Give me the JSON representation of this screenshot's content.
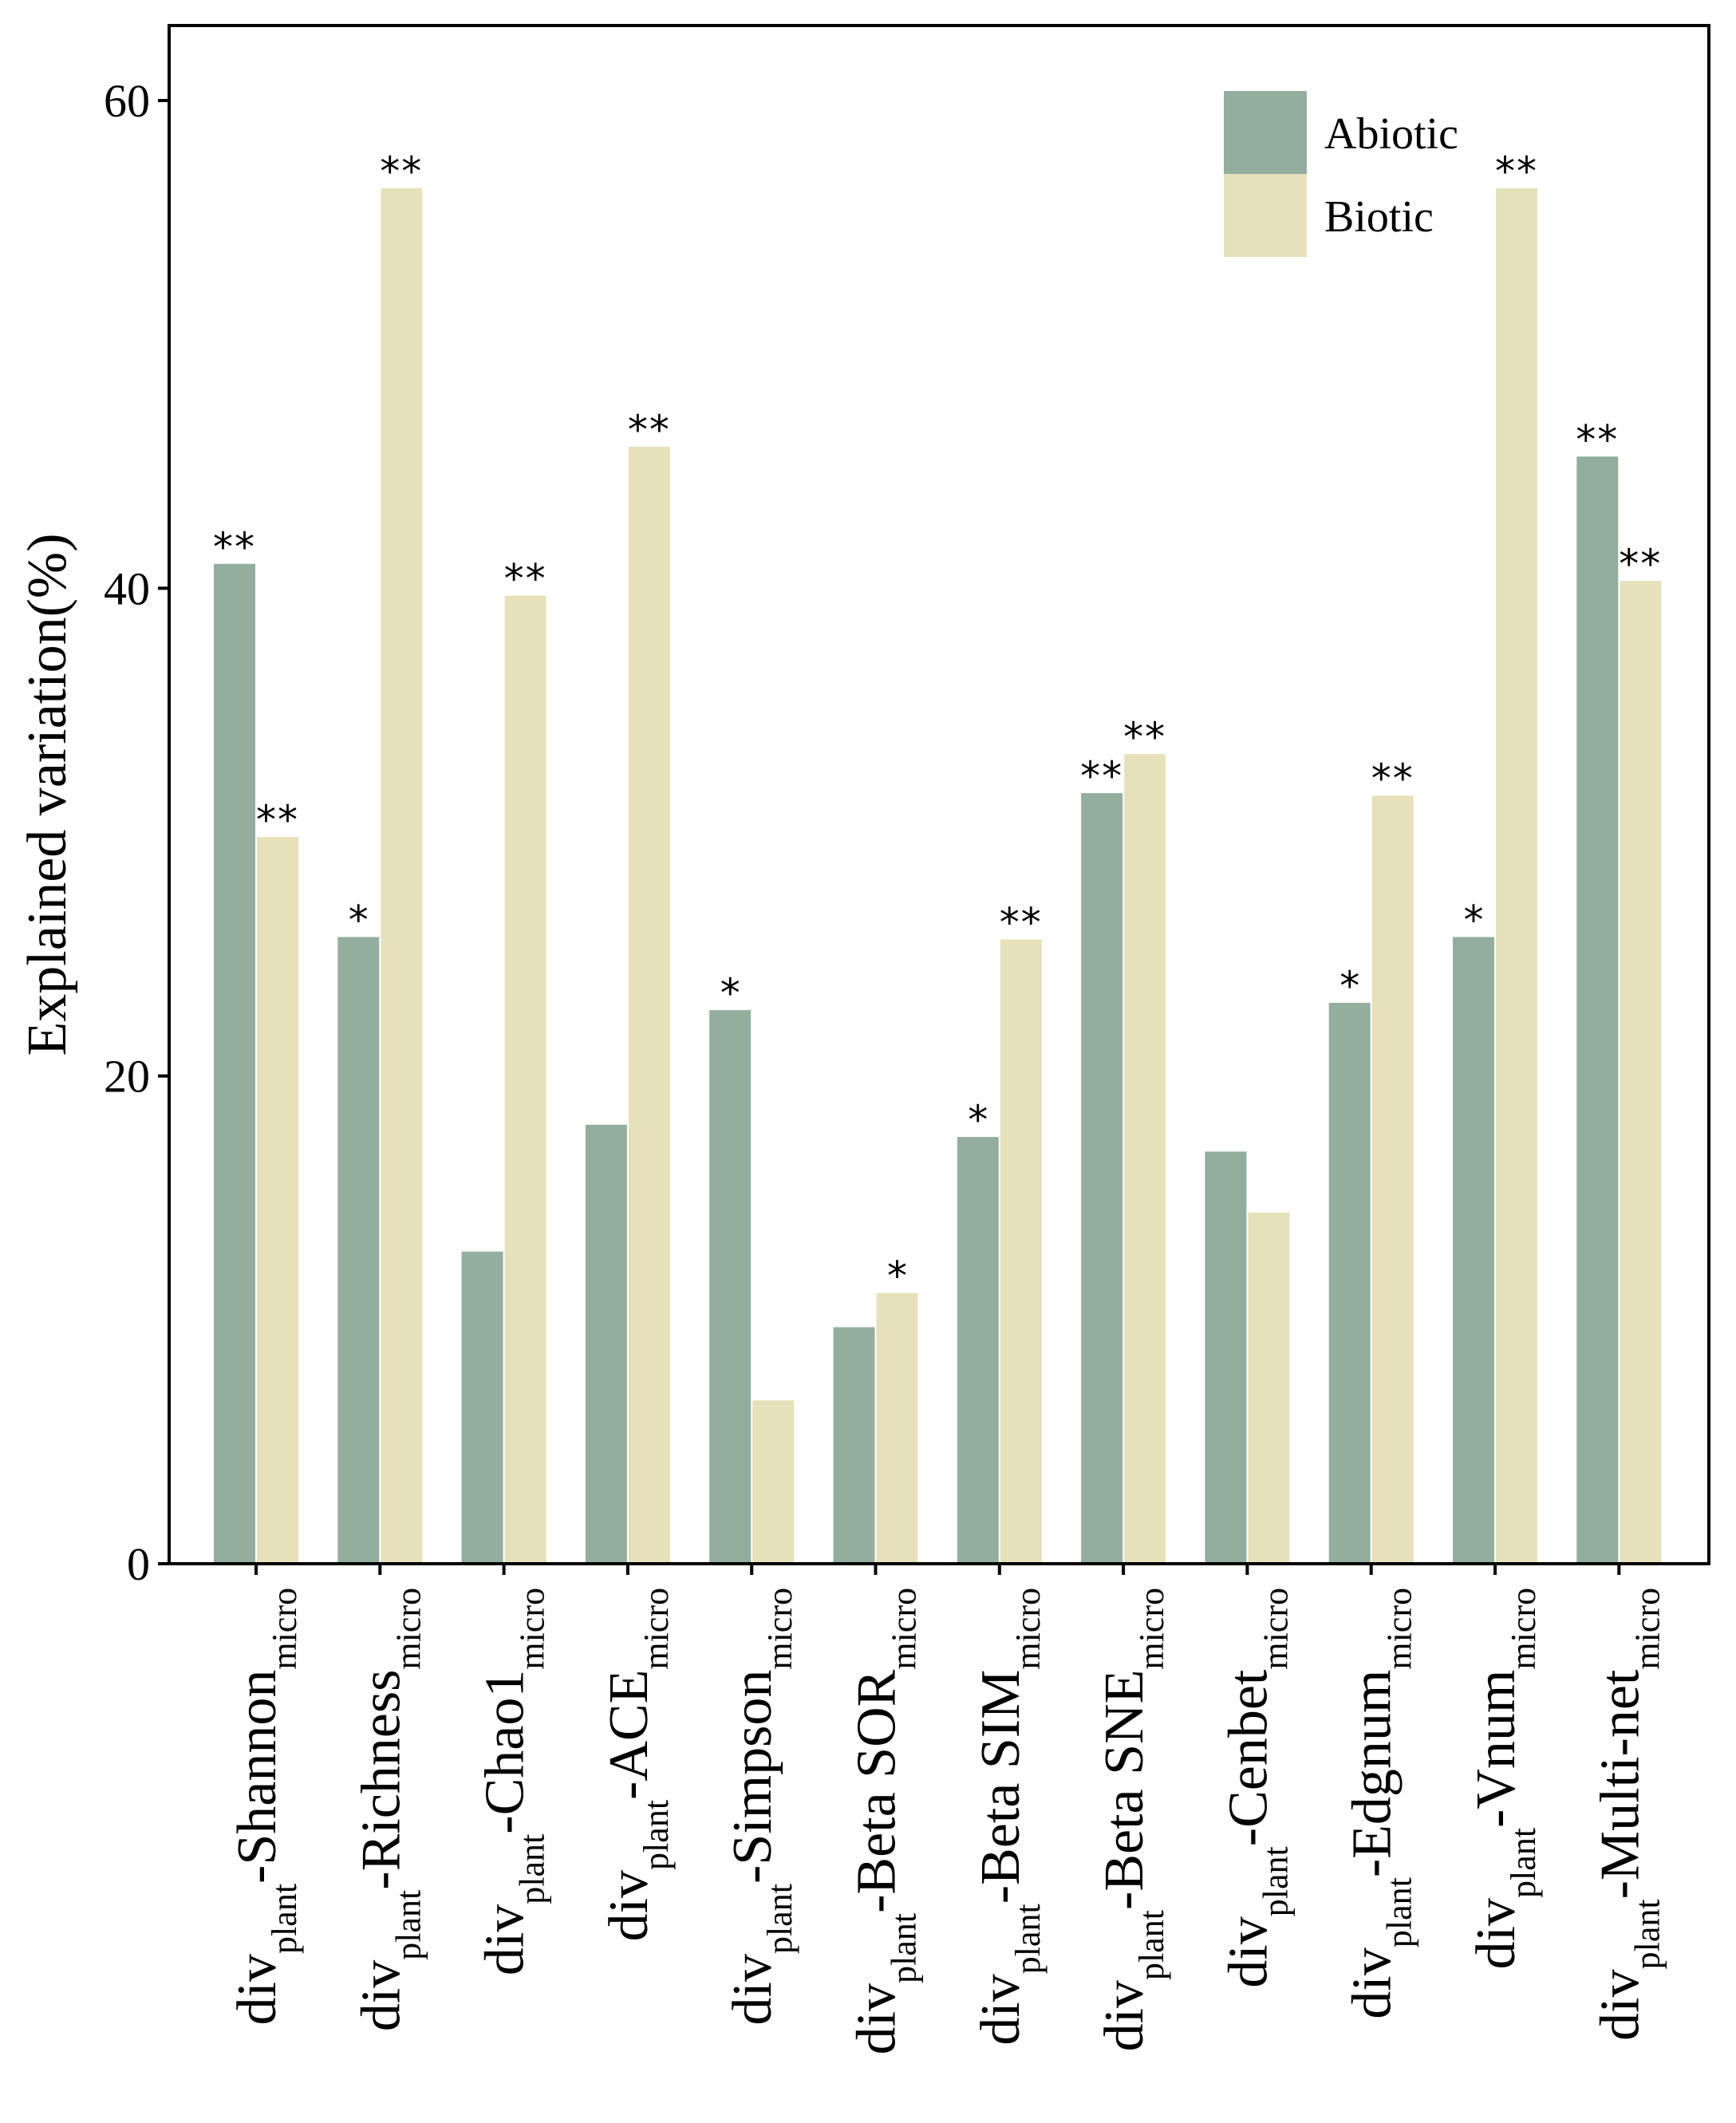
{
  "chart_data": {
    "type": "bar",
    "ylabel": "Explained variation(%)",
    "ylim": [
      0,
      60
    ],
    "yticks": [
      "0",
      "20",
      "40",
      "60"
    ],
    "legend": {
      "position": "top-right"
    },
    "categories": [
      {
        "prefix": "div",
        "sub1": "plant",
        "mid": "-Shannon",
        "sub2": "micro"
      },
      {
        "prefix": "div",
        "sub1": "plant",
        "mid": "-Richness",
        "sub2": "micro"
      },
      {
        "prefix": "div",
        "sub1": "plant",
        "mid": "-Chao1",
        "sub2": "micro"
      },
      {
        "prefix": "div",
        "sub1": "plant",
        "mid": "-ACE",
        "sub2": "micro"
      },
      {
        "prefix": "div",
        "sub1": "plant",
        "mid": "-Simpson",
        "sub2": "micro"
      },
      {
        "prefix": "div",
        "sub1": "plant",
        "mid": "-Beta SOR",
        "sub2": "micro"
      },
      {
        "prefix": "div",
        "sub1": "plant",
        "mid": "-Beta SIM",
        "sub2": "micro"
      },
      {
        "prefix": "div",
        "sub1": "plant",
        "mid": "-Beta SNE",
        "sub2": "micro"
      },
      {
        "prefix": "div",
        "sub1": "plant",
        "mid": "-Cenbet",
        "sub2": "micro"
      },
      {
        "prefix": "div",
        "sub1": "plant",
        "mid": "-Edgnum",
        "sub2": "micro"
      },
      {
        "prefix": "div",
        "sub1": "plant",
        "mid": "-Vnum",
        "sub2": "micro"
      },
      {
        "prefix": "div",
        "sub1": "plant",
        "mid": "-Multi-net",
        "sub2": "micro"
      }
    ],
    "series": [
      {
        "name": "Abiotic",
        "color": "#93ae9f",
        "values": [
          41.0,
          25.7,
          12.8,
          18.0,
          22.7,
          9.7,
          17.5,
          31.6,
          16.9,
          23.0,
          25.7,
          45.4
        ],
        "sig": [
          "**",
          "*",
          "",
          "",
          "*",
          "",
          "*",
          "**",
          "",
          "*",
          "*",
          "**"
        ]
      },
      {
        "name": "Biotic",
        "color": "#e6e1bb",
        "values": [
          29.8,
          56.4,
          39.7,
          45.8,
          6.7,
          11.1,
          25.6,
          33.2,
          14.4,
          31.5,
          56.4,
          40.3
        ],
        "sig": [
          "**",
          "**",
          "**",
          "**",
          "",
          "*",
          "**",
          "**",
          "",
          "**",
          "**",
          "**"
        ]
      }
    ]
  }
}
